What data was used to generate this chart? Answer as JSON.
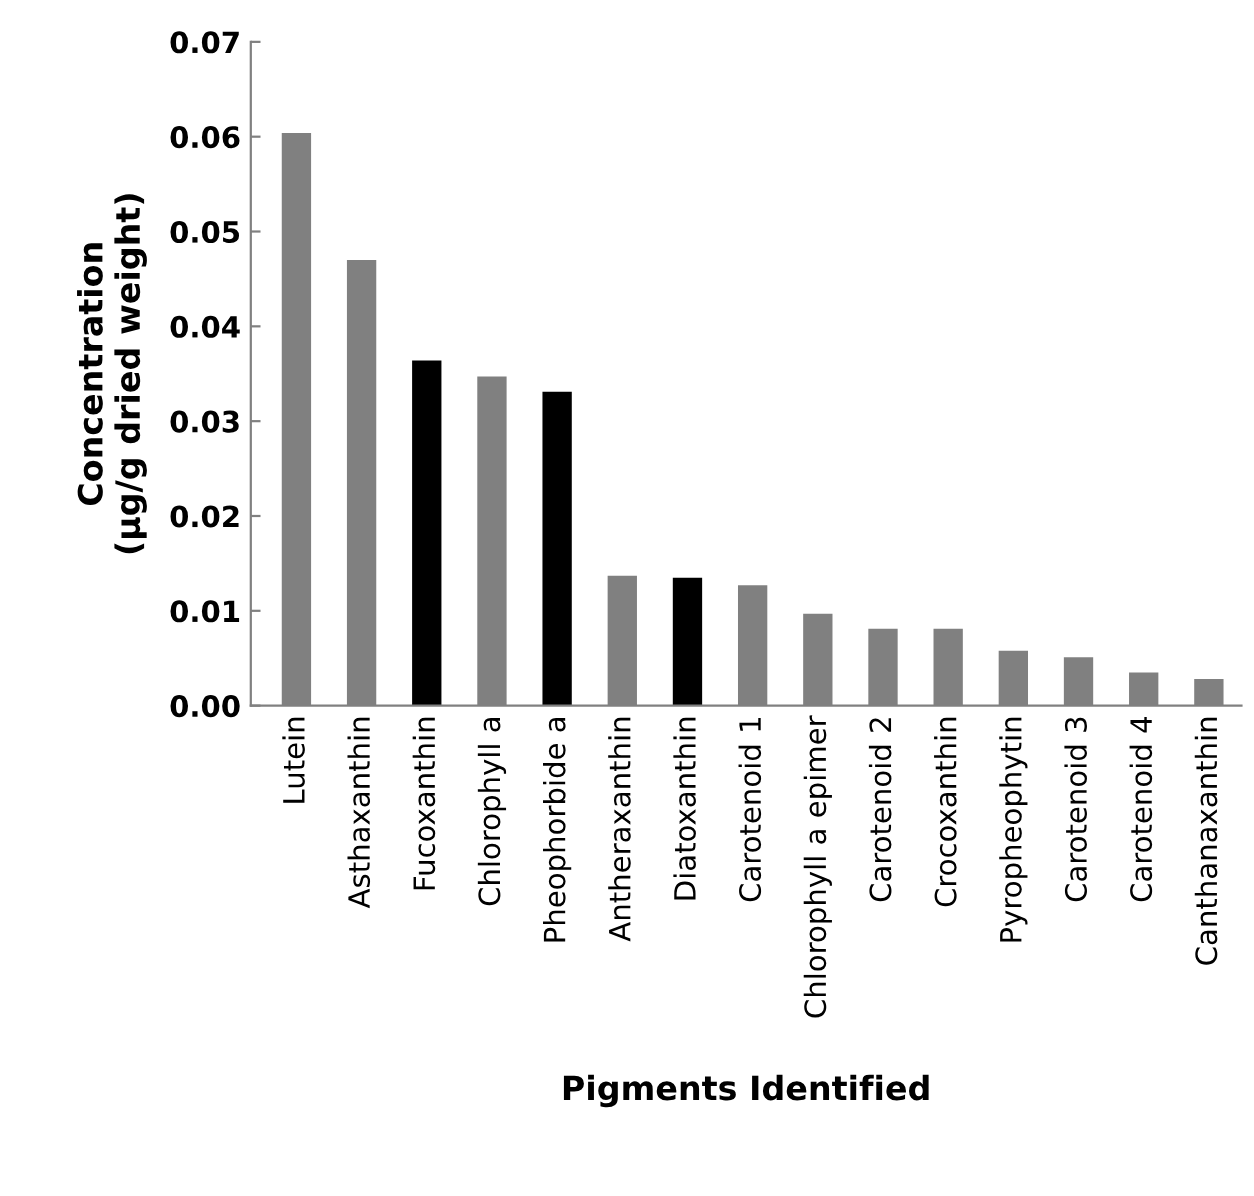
{
  "chart_data": {
    "type": "bar",
    "xlabel": "Pigments Identified",
    "ylabel": "Concentration\n(µg/g dried weight)",
    "categories": [
      "Lutein",
      "Asthaxanthin",
      "Fucoxanthin",
      "Chlorophyll a",
      "Pheophorbide a",
      "Antheraxanthin",
      "Diatoxanthin",
      "Carotenoid 1",
      "Chlorophyll a epimer",
      "Carotenoid 2",
      "Crocoxanthin",
      "Pyropheophytin",
      "Carotenoid 3",
      "Carotenoid 4",
      "Canthanaxanthin"
    ],
    "values": [
      0.0604,
      0.047,
      0.0364,
      0.0347,
      0.0331,
      0.0137,
      0.0135,
      0.0127,
      0.0097,
      0.0081,
      0.0081,
      0.0058,
      0.0051,
      0.0035,
      0.0028
    ],
    "colors": [
      "#808080",
      "#808080",
      "#000000",
      "#808080",
      "#000000",
      "#808080",
      "#000000",
      "#808080",
      "#808080",
      "#808080",
      "#808080",
      "#808080",
      "#808080",
      "#808080",
      "#808080"
    ],
    "ylim": [
      0,
      0.07
    ],
    "yticks": [
      {
        "value": 0,
        "label": "0.00"
      },
      {
        "value": 0.01,
        "label": "0.01"
      },
      {
        "value": 0.02,
        "label": "0.02"
      },
      {
        "value": 0.03,
        "label": "0.03"
      },
      {
        "value": 0.04,
        "label": "0.04"
      },
      {
        "value": 0.05,
        "label": "0.05"
      },
      {
        "value": 0.06,
        "label": "0.06"
      },
      {
        "value": 0.07,
        "label": "0.07"
      }
    ],
    "grid": false,
    "legend": false
  }
}
